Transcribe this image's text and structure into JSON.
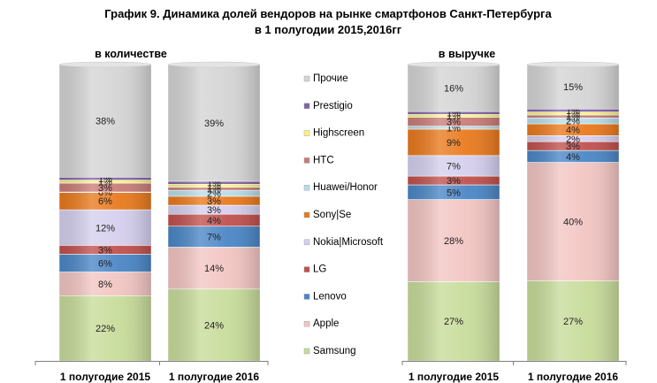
{
  "chart_data": {
    "type": "bar",
    "stacked": true,
    "title": [
      "График 9. Динамика долей вендоров на рынке смартфонов Санкт-Петербурга",
      "в 1 полугодии 2015,2016гг"
    ],
    "panels": [
      {
        "title": "в количестве",
        "categories": [
          "1 полугодие 2015",
          "1 полугодие 2016"
        ],
        "series": [
          {
            "name": "Samsung",
            "values": [
              22,
              24
            ]
          },
          {
            "name": "Apple",
            "values": [
              8,
              14
            ]
          },
          {
            "name": "Lenovo",
            "values": [
              6,
              7
            ]
          },
          {
            "name": "LG",
            "values": [
              3,
              4
            ]
          },
          {
            "name": "Nokia|Microsoft",
            "values": [
              12,
              3
            ]
          },
          {
            "name": "Sony|Se",
            "values": [
              6,
              3
            ]
          },
          {
            "name": "Huawei/Honor",
            "values": [
              0,
              2
            ]
          },
          {
            "name": "HTC",
            "values": [
              3,
              1
            ]
          },
          {
            "name": "Highscreen",
            "values": [
              1,
              1
            ]
          },
          {
            "name": "Prestigio",
            "values": [
              1,
              1
            ]
          },
          {
            "name": "Прочие",
            "values": [
              38,
              39
            ]
          }
        ]
      },
      {
        "title": "в выручке",
        "categories": [
          "1 полугодие 2015",
          "1 полугодие 2016"
        ],
        "series": [
          {
            "name": "Samsung",
            "values": [
              27,
              27
            ]
          },
          {
            "name": "Apple",
            "values": [
              28,
              40
            ]
          },
          {
            "name": "Lenovo",
            "values": [
              5,
              4
            ]
          },
          {
            "name": "LG",
            "values": [
              3,
              3
            ]
          },
          {
            "name": "Nokia|Microsoft",
            "values": [
              7,
              2
            ]
          },
          {
            "name": "Sony|Se",
            "values": [
              9,
              4
            ]
          },
          {
            "name": "Huawei/Honor",
            "values": [
              1,
              2
            ]
          },
          {
            "name": "HTC",
            "values": [
              3,
              1
            ]
          },
          {
            "name": "Highscreen",
            "values": [
              1,
              1
            ]
          },
          {
            "name": "Prestigio",
            "values": [
              1,
              1
            ]
          },
          {
            "name": "Прочие",
            "values": [
              16,
              15
            ]
          }
        ]
      }
    ],
    "colors": {
      "Samsung": "#c7dc9a",
      "Apple": "#f2c5c2",
      "Lenovo": "#4a86c6",
      "LG": "#c0504d",
      "Nokia|Microsoft": "#d5cfee",
      "Sony|Se": "#e9791d",
      "Huawei/Honor": "#b7dde8",
      "HTC": "#c87c78",
      "Highscreen": "#fbf27e",
      "Prestigio": "#8064a2",
      "Прочие": "#d4d4d4"
    },
    "legend": {
      "placement": "center",
      "order": [
        "Прочие",
        "Prestigio",
        "Highscreen",
        "HTC",
        "Huawei/Honor",
        "Sony|Se",
        "Nokia|Microsoft",
        "LG",
        "Lenovo",
        "Apple",
        "Samsung"
      ]
    },
    "value_suffix": "%"
  }
}
